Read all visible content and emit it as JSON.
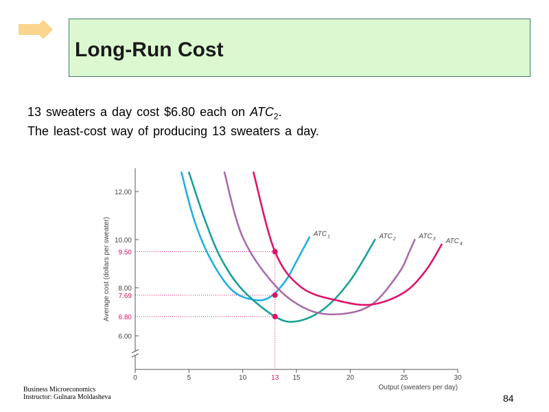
{
  "slide": {
    "title": "Long-Run Cost",
    "caption_line1_prefix": "13 sweaters a day cost $6.80 each on ",
    "caption_line1_atc": "ATC",
    "caption_line1_sub": "2",
    "caption_line1_suffix": ".",
    "caption_line2": "The least-cost  way of producing  13 sweaters a day.",
    "footer_line1": "Business Microeconomics",
    "footer_line2": "Instructor: Gulnara Moldasheva",
    "page_number": "84"
  },
  "colors": {
    "title_bg": "#dcf8d0",
    "logo": "#fbd58e",
    "atc1": "#1bb0e0",
    "atc2": "#17a095",
    "atc3": "#a86ba8",
    "atc4": "#e0106a",
    "highlight": "#e0106a"
  },
  "chart_data": {
    "type": "line",
    "xlabel": "Output (sweaters per day)",
    "ylabel": "Average cost (dollars per sweater)",
    "xlim": [
      0,
      30
    ],
    "ylim": [
      4.8,
      13.0
    ],
    "x_ticks": [
      "0",
      "5",
      "10",
      "15",
      "20",
      "25",
      "30"
    ],
    "y_ticks": [
      "6.00",
      "8.00",
      "10.00",
      "12.00"
    ],
    "axis_break": true,
    "grid": false,
    "series": [
      {
        "name": "ATC",
        "subscript": "1",
        "color_key": "atc1",
        "x": [
          4.3,
          5.5,
          7.0,
          9.0,
          11.0,
          12.5,
          14.0,
          15.0,
          16.2
        ],
        "y": [
          12.8,
          10.8,
          9.2,
          7.9,
          7.5,
          7.6,
          8.3,
          9.1,
          10.1
        ]
      },
      {
        "name": "ATC",
        "subscript": "2",
        "color_key": "atc2",
        "x": [
          5.0,
          6.5,
          8.0,
          10.0,
          13.0,
          15.0,
          17.5,
          20.0,
          22.3
        ],
        "y": [
          12.8,
          10.8,
          9.2,
          7.9,
          6.8,
          6.6,
          7.1,
          8.3,
          10.0
        ]
      },
      {
        "name": "ATC",
        "subscript": "3",
        "color_key": "atc3",
        "x": [
          8.3,
          10.0,
          13.0,
          16.0,
          19.0,
          22.0,
          24.5,
          25.5,
          26.0
        ],
        "y": [
          12.8,
          10.1,
          8.1,
          7.1,
          6.9,
          7.3,
          8.6,
          9.5,
          10.0
        ]
      },
      {
        "name": "ATC",
        "subscript": "4",
        "color_key": "atc4",
        "x": [
          11.0,
          13.0,
          15.5,
          19.0,
          22.0,
          25.0,
          27.0,
          28.5
        ],
        "y": [
          12.8,
          9.5,
          8.0,
          7.45,
          7.3,
          7.8,
          8.7,
          9.8
        ]
      }
    ],
    "highlight_x": 13,
    "highlight_points": [
      {
        "label": "9.50",
        "y": 9.5
      },
      {
        "label": "7.69",
        "y": 7.69
      },
      {
        "label": "6.80",
        "y": 6.8
      }
    ],
    "highlight_x_label": "13"
  }
}
